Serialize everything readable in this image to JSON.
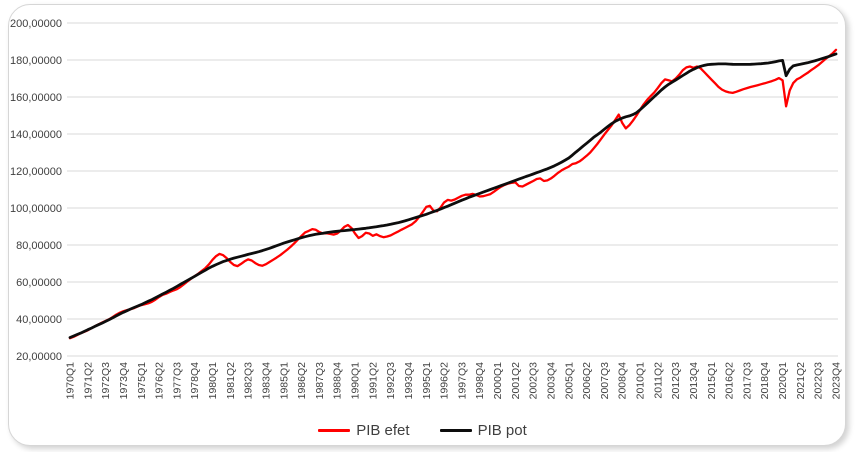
{
  "colors": {
    "series_efet": "#ff0000",
    "series_pot": "#0d0d0d",
    "grid": "#d9d9d9",
    "axis_text": "#404040",
    "card_border": "#d6d6d6"
  },
  "chart_data": {
    "type": "line",
    "title": "",
    "grid": "horizontal",
    "legend_position": "bottom",
    "x_axis": {
      "label": "",
      "first_point": "1970Q1",
      "last_point": "2023Q4",
      "points": 216,
      "tick_every_n_points": 5,
      "tick_labels": [
        "1970Q1",
        "1971Q2",
        "1972Q3",
        "1973Q4",
        "1975Q1",
        "1976Q2",
        "1977Q3",
        "1978Q4",
        "1980Q1",
        "1981Q2",
        "1982Q3",
        "1983Q4",
        "1985Q1",
        "1986Q2",
        "1987Q3",
        "1988Q4",
        "1990Q1",
        "1991Q2",
        "1992Q3",
        "1993Q4",
        "1995Q1",
        "1996Q2",
        "1997Q3",
        "1998Q4",
        "2000Q1",
        "2001Q2",
        "2002Q3",
        "2003Q4",
        "2005Q1",
        "2006Q2",
        "2007Q3",
        "2008Q4",
        "2010Q1",
        "2011Q2",
        "2012Q3",
        "2013Q4",
        "2015Q1",
        "2016Q2",
        "2017Q3",
        "2018Q4",
        "2020Q1",
        "2021Q2",
        "2022Q3",
        "2023Q4"
      ]
    },
    "y_axis": {
      "label": "",
      "min": 20,
      "max": 200,
      "step": 20,
      "tick_labels": [
        "20,00000",
        "40,00000",
        "60,00000",
        "80,00000",
        "100,00000",
        "120,00000",
        "140,00000",
        "160,00000",
        "180,00000",
        "200,00000"
      ]
    },
    "series": [
      {
        "name": "PIB efet",
        "color": "#ff0000",
        "values": [
          29.6,
          30.4,
          31.3,
          32.3,
          33.1,
          33.9,
          35.0,
          36.1,
          37.1,
          38.1,
          39.0,
          39.9,
          41.1,
          42.4,
          43.4,
          44.2,
          44.8,
          45.3,
          45.9,
          46.8,
          47.5,
          48.0,
          48.5,
          49.3,
          50.5,
          51.9,
          53.0,
          53.7,
          54.6,
          55.4,
          56.1,
          57.3,
          58.8,
          60.3,
          61.8,
          63.2,
          64.5,
          66.0,
          67.5,
          69.5,
          72.0,
          74.0,
          75.2,
          74.5,
          72.8,
          70.8,
          69.2,
          68.6,
          69.8,
          71.2,
          72.2,
          71.6,
          70.2,
          69.2,
          68.8,
          69.6,
          70.8,
          72.0,
          73.2,
          74.5,
          76.0,
          77.5,
          79.2,
          81.0,
          83.0,
          85.0,
          86.8,
          87.6,
          88.6,
          88.2,
          87.0,
          86.2,
          86.4,
          86.0,
          85.6,
          86.2,
          87.8,
          89.8,
          90.8,
          89.2,
          86.2,
          83.8,
          84.8,
          86.6,
          86.2,
          85.0,
          85.8,
          84.8,
          84.2,
          84.6,
          85.2,
          86.2,
          87.2,
          88.2,
          89.2,
          90.2,
          91.2,
          92.8,
          95.2,
          97.8,
          100.6,
          101.2,
          98.6,
          98.2,
          100.2,
          103.0,
          104.4,
          104.0,
          104.6,
          105.6,
          106.6,
          107.2,
          107.2,
          107.6,
          107.0,
          106.2,
          106.4,
          106.9,
          107.5,
          108.8,
          110.2,
          111.5,
          112.5,
          113.2,
          113.6,
          113.9,
          111.9,
          111.6,
          112.6,
          113.6,
          114.6,
          115.7,
          116.0,
          114.6,
          114.9,
          116.0,
          117.4,
          119.0,
          120.4,
          121.4,
          122.4,
          123.8,
          124.2,
          125.2,
          126.6,
          128.2,
          130.0,
          132.2,
          134.6,
          137.2,
          139.8,
          142.2,
          144.6,
          147.5,
          150.5,
          146.0,
          143.0,
          144.8,
          147.2,
          150.0,
          153.0,
          156.0,
          158.5,
          160.5,
          162.5,
          165.0,
          167.5,
          169.5,
          169.0,
          168.5,
          170.0,
          172.0,
          174.5,
          176.0,
          176.5,
          175.8,
          176.5,
          175.5,
          173.5,
          171.5,
          169.5,
          167.5,
          165.5,
          164.0,
          163.0,
          162.5,
          162.2,
          162.8,
          163.5,
          164.2,
          164.8,
          165.4,
          165.9,
          166.4,
          166.9,
          167.4,
          168.0,
          168.6,
          169.3,
          170.2,
          169.0,
          155.0,
          163.5,
          167.5,
          169.5,
          170.5,
          171.8,
          173.0,
          174.5,
          175.8,
          177.2,
          178.8,
          180.5,
          182.0,
          183.5,
          185.5
        ]
      },
      {
        "name": "PIB pot",
        "color": "#0d0d0d",
        "values": [
          30.0,
          30.8,
          31.6,
          32.4,
          33.3,
          34.2,
          35.1,
          36.0,
          36.9,
          37.8,
          38.7,
          39.7,
          40.7,
          41.7,
          42.7,
          43.6,
          44.5,
          45.4,
          46.2,
          47.0,
          47.8,
          48.7,
          49.6,
          50.5,
          51.5,
          52.5,
          53.5,
          54.5,
          55.5,
          56.5,
          57.6,
          58.7,
          59.8,
          60.9,
          62.0,
          63.1,
          64.2,
          65.3,
          66.4,
          67.5,
          68.5,
          69.4,
          70.2,
          71.0,
          71.7,
          72.3,
          72.9,
          73.4,
          73.9,
          74.4,
          74.9,
          75.4,
          75.9,
          76.4,
          77.0,
          77.6,
          78.2,
          78.9,
          79.6,
          80.3,
          81.0,
          81.6,
          82.2,
          82.8,
          83.4,
          84.0,
          84.5,
          85.0,
          85.4,
          85.8,
          86.1,
          86.4,
          86.7,
          87.0,
          87.2,
          87.4,
          87.6,
          87.8,
          88.0,
          88.2,
          88.4,
          88.6,
          88.8,
          89.0,
          89.3,
          89.6,
          89.9,
          90.2,
          90.5,
          90.8,
          91.2,
          91.6,
          92.0,
          92.5,
          93.0,
          93.6,
          94.2,
          94.8,
          95.4,
          96.0,
          96.6,
          97.3,
          98.0,
          98.7,
          99.4,
          100.2,
          101.0,
          101.8,
          102.6,
          103.4,
          104.2,
          105.0,
          105.8,
          106.5,
          107.2,
          107.9,
          108.6,
          109.3,
          110.0,
          110.7,
          111.4,
          112.1,
          112.8,
          113.5,
          114.2,
          114.9,
          115.6,
          116.3,
          117.0,
          117.7,
          118.4,
          119.1,
          119.8,
          120.5,
          121.2,
          122.0,
          122.8,
          123.8,
          124.8,
          125.9,
          127.0,
          128.6,
          130.2,
          131.8,
          133.4,
          135.0,
          136.6,
          138.2,
          139.6,
          141.0,
          142.6,
          144.1,
          145.5,
          146.8,
          147.8,
          148.6,
          149.3,
          149.8,
          150.5,
          151.5,
          153.0,
          154.8,
          156.6,
          158.4,
          160.2,
          162.0,
          163.8,
          165.4,
          166.8,
          168.0,
          169.2,
          170.4,
          171.6,
          172.8,
          174.0,
          175.0,
          175.9,
          176.6,
          177.1,
          177.5,
          177.7,
          177.8,
          177.9,
          177.9,
          177.9,
          177.8,
          177.7,
          177.6,
          177.6,
          177.6,
          177.6,
          177.7,
          177.8,
          177.9,
          178.0,
          178.2,
          178.4,
          178.7,
          179.1,
          179.5,
          179.8,
          171.5,
          175.0,
          176.8,
          177.3,
          177.7,
          178.1,
          178.5,
          179.0,
          179.5,
          180.1,
          180.7,
          181.3,
          181.9,
          182.6,
          183.3
        ]
      }
    ]
  }
}
